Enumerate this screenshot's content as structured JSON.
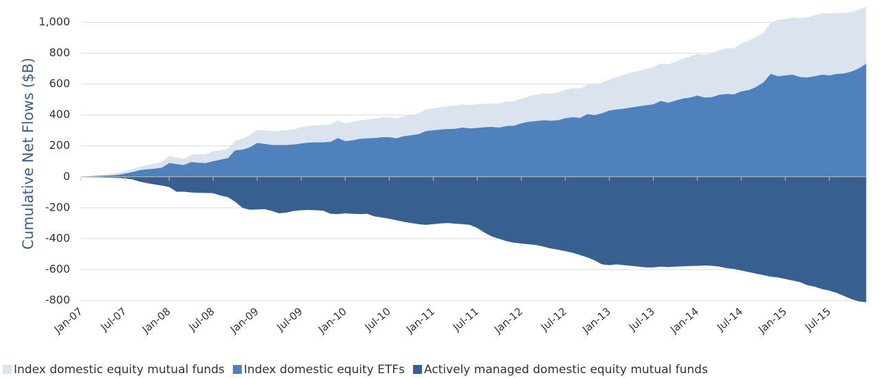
{
  "chart_data": {
    "type": "stacked_area",
    "y_label": "Cumulative Net Flows ($B)",
    "categories": [
      "Jan-07",
      null,
      null,
      null,
      null,
      null,
      "Jul-07",
      null,
      null,
      null,
      null,
      null,
      "Jan-08",
      null,
      null,
      null,
      null,
      null,
      "Jul-08",
      null,
      null,
      null,
      null,
      null,
      "Jan-09",
      null,
      null,
      null,
      null,
      null,
      "Jul-09",
      null,
      null,
      null,
      null,
      null,
      "Jan-10",
      null,
      null,
      null,
      null,
      null,
      "Jul-10",
      null,
      null,
      null,
      null,
      null,
      "Jan-11",
      null,
      null,
      null,
      null,
      null,
      "Jul-11",
      null,
      null,
      null,
      null,
      null,
      "Jan-12",
      null,
      null,
      null,
      null,
      null,
      "Jul-12",
      null,
      null,
      null,
      null,
      null,
      "Jan-13",
      null,
      null,
      null,
      null,
      null,
      "Jul-13",
      null,
      null,
      null,
      null,
      null,
      "Jan-14",
      null,
      null,
      null,
      null,
      null,
      "Jul-14",
      null,
      null,
      null,
      null,
      null,
      "Jan-15",
      null,
      null,
      null,
      null,
      null,
      "Jul-15",
      null,
      null,
      null,
      null,
      null
    ],
    "series": [
      {
        "name": "Index domestic equity mutual funds",
        "color": "#dbe3ef",
        "stack_on": 1,
        "values": [
          0,
          2,
          5,
          8,
          10,
          12,
          15,
          18,
          22,
          28,
          32,
          38,
          45,
          42,
          40,
          48,
          55,
          58,
          65,
          62,
          60,
          65,
          70,
          80,
          85,
          88,
          90,
          92,
          95,
          98,
          105,
          108,
          110,
          112,
          112,
          115,
          115,
          118,
          120,
          122,
          125,
          128,
          130,
          128,
          130,
          132,
          135,
          140,
          140,
          145,
          148,
          150,
          150,
          152,
          155,
          150,
          152,
          155,
          158,
          158,
          160,
          165,
          170,
          172,
          175,
          180,
          185,
          188,
          190,
          192,
          195,
          198,
          200,
          210,
          220,
          225,
          228,
          235,
          240,
          242,
          248,
          252,
          258,
          265,
          270,
          275,
          285,
          290,
          295,
          300,
          310,
          318,
          325,
          320,
          330,
          365,
          365,
          370,
          380,
          390,
          395,
          398,
          400,
          395,
          390,
          385,
          380,
          370
        ]
      },
      {
        "name": "Index domestic equity ETFs",
        "color": "#4f81bd",
        "values": [
          0,
          2,
          4,
          6,
          8,
          12,
          20,
          30,
          42,
          48,
          52,
          58,
          88,
          82,
          75,
          95,
          90,
          88,
          100,
          110,
          120,
          170,
          175,
          190,
          218,
          212,
          205,
          205,
          205,
          208,
          215,
          220,
          222,
          222,
          225,
          250,
          230,
          235,
          245,
          248,
          250,
          255,
          255,
          248,
          262,
          268,
          275,
          295,
          300,
          305,
          308,
          310,
          318,
          312,
          315,
          320,
          322,
          318,
          328,
          330,
          345,
          355,
          360,
          365,
          362,
          365,
          378,
          385,
          380,
          405,
          398,
          410,
          428,
          435,
          440,
          448,
          455,
          462,
          468,
          490,
          478,
          492,
          505,
          512,
          525,
          512,
          515,
          530,
          535,
          532,
          552,
          560,
          580,
          610,
          665,
          650,
          655,
          660,
          645,
          642,
          650,
          660,
          655,
          665,
          668,
          680,
          700,
          730
        ]
      },
      {
        "name": "Actively managed domestic equity mutual funds",
        "color": "#375f8f",
        "values": [
          0,
          -1,
          -2,
          -3,
          -4,
          -6,
          -10,
          -15,
          -30,
          -40,
          -48,
          -55,
          -65,
          -95,
          -95,
          -100,
          -102,
          -103,
          -105,
          -120,
          -130,
          -160,
          -200,
          -212,
          -210,
          -208,
          -220,
          -235,
          -230,
          -220,
          -215,
          -213,
          -215,
          -218,
          -238,
          -240,
          -235,
          -238,
          -240,
          -238,
          -255,
          -262,
          -270,
          -280,
          -290,
          -298,
          -305,
          -310,
          -305,
          -300,
          -298,
          -302,
          -305,
          -310,
          -330,
          -360,
          -385,
          -400,
          -415,
          -425,
          -430,
          -435,
          -440,
          -450,
          -462,
          -470,
          -480,
          -490,
          -505,
          -520,
          -540,
          -565,
          -570,
          -565,
          -570,
          -575,
          -580,
          -585,
          -585,
          -580,
          -583,
          -580,
          -578,
          -576,
          -575,
          -572,
          -575,
          -580,
          -590,
          -595,
          -605,
          -615,
          -625,
          -635,
          -645,
          -650,
          -660,
          -670,
          -680,
          -700,
          -710,
          -725,
          -735,
          -750,
          -770,
          -790,
          -805,
          -810
        ]
      }
    ],
    "ylim": [
      -800,
      1100
    ],
    "yticks": [
      -800,
      -600,
      -400,
      -200,
      0,
      200,
      400,
      600,
      800,
      {
        "value": 1000,
        "label": "1,000"
      }
    ],
    "grid": true,
    "legend": "bottom"
  }
}
